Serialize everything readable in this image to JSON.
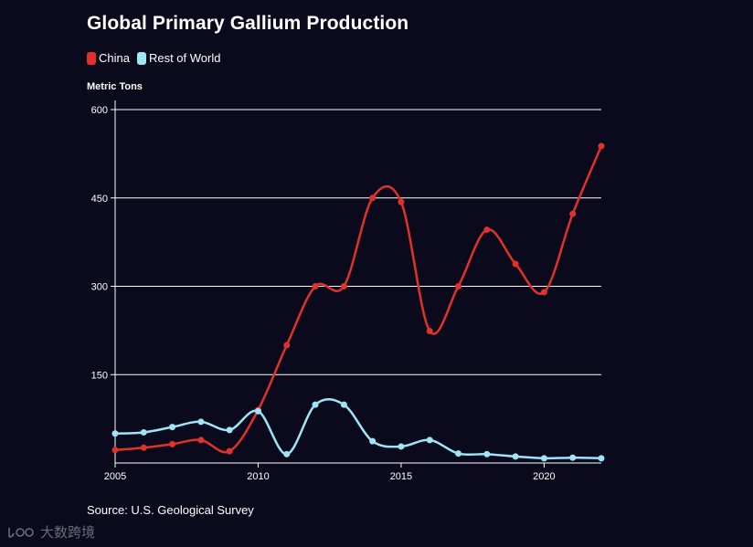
{
  "chart_data": {
    "type": "line",
    "title": "Global Primary Gallium Production",
    "ylabel": "Metric Tons",
    "xlabel": "",
    "source": "Source: U.S. Geological Survey",
    "ylim": [
      0,
      600
    ],
    "xlim": [
      2005,
      2022
    ],
    "yticks": [
      150,
      300,
      450,
      600
    ],
    "xticks": [
      2005,
      2010,
      2015,
      2020
    ],
    "x": [
      2005,
      2006,
      2007,
      2008,
      2009,
      2010,
      2011,
      2012,
      2013,
      2014,
      2015,
      2016,
      2017,
      2018,
      2019,
      2020,
      2021,
      2022
    ],
    "series": [
      {
        "name": "China",
        "color": "#e0312b",
        "values": [
          22,
          26,
          32,
          39,
          20,
          90,
          200,
          300,
          300,
          450,
          443,
          224,
          300,
          396,
          338,
          290,
          423,
          538
        ]
      },
      {
        "name": "Rest of World",
        "color": "#9ee6f7",
        "values": [
          50,
          52,
          61,
          70,
          56,
          88,
          15,
          99,
          99,
          37,
          28,
          39,
          16,
          15,
          11,
          8,
          9,
          8
        ]
      }
    ],
    "grid": true,
    "legend": "top-left"
  },
  "watermark": {
    "text": "大数跨境",
    "icon": "brand-logo-icon"
  }
}
